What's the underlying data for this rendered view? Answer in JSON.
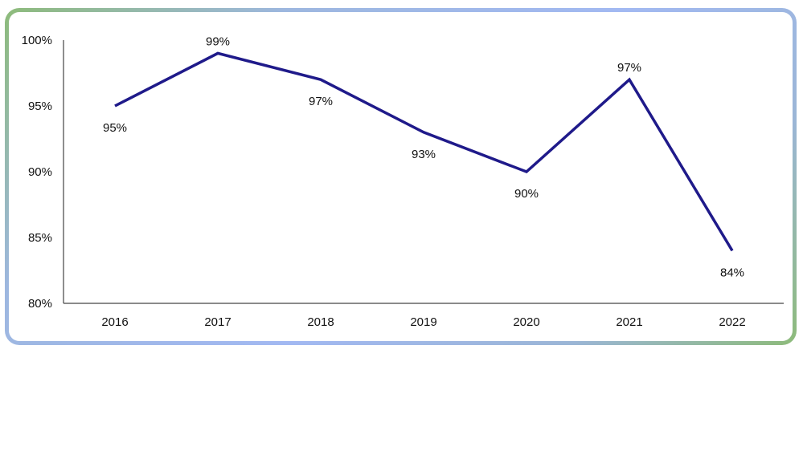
{
  "chart_data": {
    "type": "line",
    "x": [
      "2016",
      "2017",
      "2018",
      "2019",
      "2020",
      "2021",
      "2022"
    ],
    "series": [
      {
        "values": [
          95,
          99,
          97,
          93,
          90,
          97,
          84
        ],
        "data_labels": [
          "95%",
          "99%",
          "97%",
          "93%",
          "90%",
          "97%",
          "84%"
        ],
        "color": "#1f1a8a"
      }
    ],
    "ylim": [
      80,
      100
    ],
    "yticks": [
      100,
      95,
      90,
      85,
      80
    ],
    "ytick_labels": [
      "100%",
      "95%",
      "90%",
      "85%",
      "80%"
    ],
    "grid": false,
    "legend": "none",
    "title": "",
    "xlabel": "",
    "ylabel": ""
  },
  "colors": {
    "line": "#1f1a8a",
    "axis": "#444444",
    "border_green": "#8dbb7a",
    "border_blue": "#a2b9f2"
  }
}
